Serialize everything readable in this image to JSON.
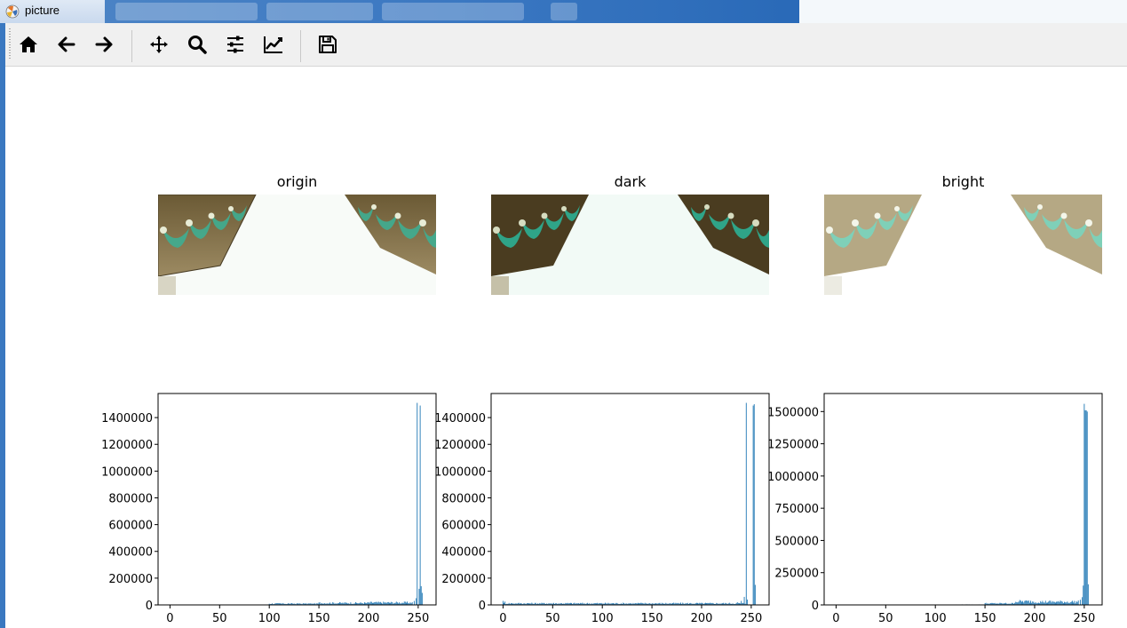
{
  "window": {
    "title": "picture"
  },
  "toolbar": {
    "buttons": [
      {
        "name": "home",
        "icon": "home-icon"
      },
      {
        "name": "back",
        "icon": "arrow-left-icon"
      },
      {
        "name": "forward",
        "icon": "arrow-right-icon"
      },
      {
        "name": "pan",
        "icon": "move-icon"
      },
      {
        "name": "zoom",
        "icon": "zoom-icon"
      },
      {
        "name": "subplots",
        "icon": "sliders-icon"
      },
      {
        "name": "customize",
        "icon": "line-chart-icon"
      },
      {
        "name": "save",
        "icon": "floppy-icon"
      }
    ]
  },
  "figure": {
    "image_titles": [
      "origin",
      "dark",
      "bright"
    ]
  },
  "chart_data": [
    {
      "type": "bar",
      "x": [
        0,
        50,
        100,
        150,
        200,
        250
      ],
      "xticks": [
        "0",
        "50",
        "100",
        "150",
        "200",
        "250"
      ],
      "xlim": [
        -12,
        268
      ],
      "ylim": [
        0,
        1580000
      ],
      "yticks": [
        "0",
        "200000",
        "400000",
        "600000",
        "800000",
        "1000000",
        "1200000",
        "1400000"
      ],
      "ytick_values": [
        0,
        200000,
        400000,
        600000,
        800000,
        1000000,
        1200000,
        1400000
      ],
      "color": "#1f77b4",
      "values_by_bin": {
        "low_range": [
          55,
          100,
          2000
        ],
        "mid_range": [
          100,
          150,
          10000
        ],
        "mid2_range": [
          150,
          200,
          15000
        ],
        "high_range": [
          200,
          245,
          18000
        ],
        "peaks": [
          [
            246,
            30000
          ],
          [
            248,
            50000
          ],
          [
            249,
            1510000
          ],
          [
            251,
            120000
          ],
          [
            252,
            1490000
          ],
          [
            253,
            140000
          ],
          [
            254,
            90000
          ]
        ]
      }
    },
    {
      "type": "bar",
      "x": [
        0,
        50,
        100,
        150,
        200,
        250
      ],
      "xticks": [
        "0",
        "50",
        "100",
        "150",
        "200",
        "250"
      ],
      "xlim": [
        -12,
        268
      ],
      "ylim": [
        0,
        1580000
      ],
      "yticks": [
        "0",
        "200000",
        "400000",
        "600000",
        "800000",
        "1000000",
        "1200000",
        "1400000"
      ],
      "ytick_values": [
        0,
        200000,
        400000,
        600000,
        800000,
        1000000,
        1200000,
        1400000
      ],
      "color": "#1f77b4",
      "values_by_bin": {
        "low_range": [
          0,
          245,
          12000
        ],
        "peaks": [
          [
            0,
            30000
          ],
          [
            2,
            25000
          ],
          [
            236,
            20000
          ],
          [
            240,
            30000
          ],
          [
            243,
            60000
          ],
          [
            245,
            1510000
          ],
          [
            246,
            40000
          ],
          [
            252,
            1490000
          ],
          [
            253,
            1500000
          ],
          [
            254,
            150000
          ]
        ]
      }
    },
    {
      "type": "bar",
      "x": [
        0,
        50,
        100,
        150,
        200,
        250
      ],
      "xticks": [
        "0",
        "50",
        "100",
        "150",
        "200",
        "250"
      ],
      "xlim": [
        -12,
        268
      ],
      "ylim": [
        0,
        1640000
      ],
      "yticks": [
        "0",
        "250000",
        "500000",
        "750000",
        "1000000",
        "1250000",
        "1500000"
      ],
      "ytick_values": [
        0,
        250000,
        500000,
        750000,
        1000000,
        1250000,
        1500000
      ],
      "color": "#1f77b4",
      "values_by_bin": {
        "low_range": [
          120,
          150,
          3000
        ],
        "mid_range": [
          150,
          180,
          12000
        ],
        "mid2_range": [
          180,
          200,
          28000
        ],
        "high_range": [
          200,
          245,
          25000
        ],
        "peaks": [
          [
            246,
            40000
          ],
          [
            248,
            60000
          ],
          [
            249,
            150000
          ],
          [
            250,
            1560000
          ],
          [
            251,
            1510000
          ],
          [
            252,
            1510000
          ],
          [
            253,
            1500000
          ],
          [
            254,
            160000
          ]
        ]
      }
    }
  ]
}
